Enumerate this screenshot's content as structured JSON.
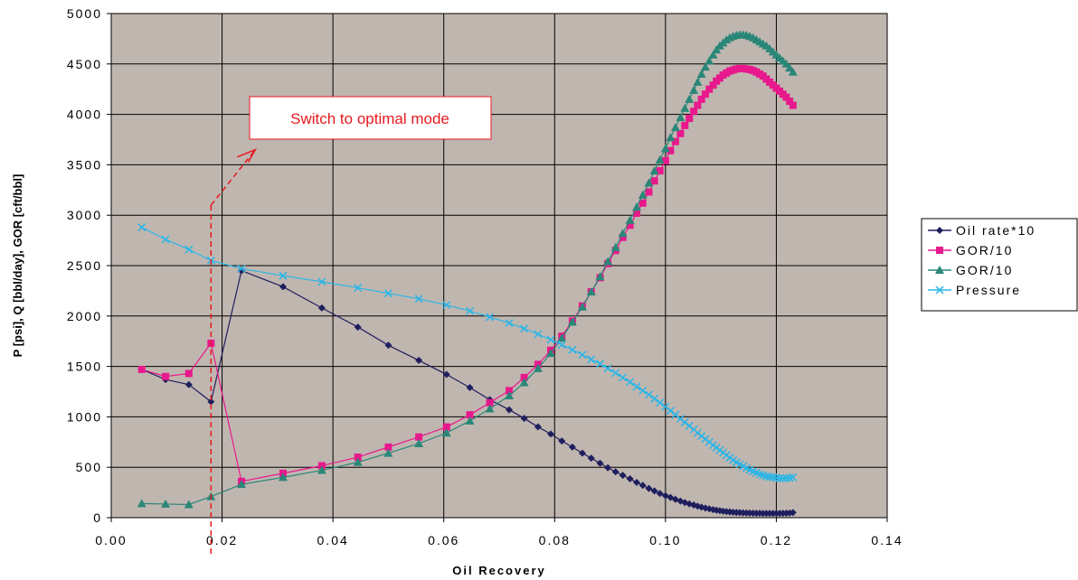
{
  "chart_data": {
    "type": "line",
    "xlabel": "Oil Recovery",
    "ylabel": "P [psi], Q [bbl/day], GOR [cft/bbl]",
    "xlim": [
      0,
      0.14
    ],
    "ylim": [
      0,
      5000
    ],
    "xticks": [
      "0.00",
      "0.02",
      "0.04",
      "0.06",
      "0.08",
      "0.10",
      "0.12",
      "0.14"
    ],
    "yticks": [
      "0",
      "500",
      "1000",
      "1500",
      "2000",
      "2500",
      "3000",
      "3500",
      "4000",
      "4500",
      "5000"
    ],
    "grid": true,
    "plot_background": "#c0b6b0",
    "legend_position": "right",
    "annotation": {
      "text": "Switch to optimal mode",
      "x": 0.018,
      "line_top_y": 3100,
      "arrow_to": [
        0.026,
        3650
      ],
      "color": "#e8191f"
    },
    "series": [
      {
        "name": "Oil rate*10",
        "color": "#1f1f5e",
        "marker": "diamond",
        "points": [
          [
            0.0055,
            1470
          ],
          [
            0.0098,
            1370
          ],
          [
            0.014,
            1320
          ],
          [
            0.018,
            1150
          ],
          [
            0.0235,
            2450
          ],
          [
            0.031,
            2290
          ],
          [
            0.038,
            2080
          ],
          [
            0.0445,
            1890
          ],
          [
            0.05,
            1710
          ],
          [
            0.0555,
            1560
          ],
          [
            0.0605,
            1420
          ],
          [
            0.0647,
            1290
          ],
          [
            0.0683,
            1170
          ],
          [
            0.0718,
            1070
          ],
          [
            0.0745,
            985
          ],
          [
            0.077,
            900
          ],
          [
            0.0793,
            830
          ],
          [
            0.0813,
            760
          ],
          [
            0.0832,
            700
          ],
          [
            0.085,
            640
          ],
          [
            0.0866,
            590
          ],
          [
            0.0882,
            540
          ],
          [
            0.0896,
            495
          ],
          [
            0.091,
            455
          ],
          [
            0.0923,
            420
          ],
          [
            0.0936,
            385
          ],
          [
            0.0948,
            350
          ],
          [
            0.0959,
            320
          ],
          [
            0.097,
            290
          ],
          [
            0.098,
            265
          ],
          [
            0.099,
            240
          ],
          [
            0.1,
            218
          ],
          [
            0.1009,
            200
          ],
          [
            0.1018,
            182
          ],
          [
            0.1027,
            165
          ],
          [
            0.1035,
            150
          ],
          [
            0.1043,
            137
          ],
          [
            0.1051,
            125
          ],
          [
            0.1058,
            114
          ],
          [
            0.1065,
            104
          ],
          [
            0.1072,
            95
          ],
          [
            0.1079,
            87
          ],
          [
            0.1086,
            80
          ],
          [
            0.1092,
            74
          ],
          [
            0.1098,
            69
          ],
          [
            0.1104,
            64
          ],
          [
            0.111,
            60
          ],
          [
            0.1116,
            57
          ],
          [
            0.1122,
            54
          ],
          [
            0.1128,
            52
          ],
          [
            0.1134,
            50
          ],
          [
            0.114,
            48
          ],
          [
            0.1146,
            47
          ],
          [
            0.1152,
            46
          ],
          [
            0.1158,
            45
          ],
          [
            0.1164,
            44
          ],
          [
            0.117,
            44
          ],
          [
            0.1176,
            43
          ],
          [
            0.1182,
            43
          ],
          [
            0.1188,
            43
          ],
          [
            0.1194,
            43
          ],
          [
            0.12,
            43
          ],
          [
            0.1206,
            43
          ],
          [
            0.1212,
            44
          ],
          [
            0.1218,
            45
          ],
          [
            0.1224,
            46
          ],
          [
            0.123,
            50
          ]
        ]
      },
      {
        "name": "GOR/10",
        "color": "#e8198c",
        "marker": "square",
        "points": [
          [
            0.0055,
            1470
          ],
          [
            0.0098,
            1400
          ],
          [
            0.014,
            1430
          ],
          [
            0.018,
            1730
          ],
          [
            0.0235,
            360
          ],
          [
            0.031,
            440
          ],
          [
            0.038,
            515
          ],
          [
            0.0445,
            600
          ],
          [
            0.05,
            700
          ],
          [
            0.0555,
            800
          ],
          [
            0.0605,
            900
          ],
          [
            0.0647,
            1020
          ],
          [
            0.0683,
            1140
          ],
          [
            0.0718,
            1260
          ],
          [
            0.0745,
            1390
          ],
          [
            0.077,
            1520
          ],
          [
            0.0793,
            1660
          ],
          [
            0.0813,
            1800
          ],
          [
            0.0832,
            1950
          ],
          [
            0.085,
            2100
          ],
          [
            0.0866,
            2240
          ],
          [
            0.0882,
            2380
          ],
          [
            0.0896,
            2520
          ],
          [
            0.091,
            2650
          ],
          [
            0.0923,
            2780
          ],
          [
            0.0936,
            2900
          ],
          [
            0.0948,
            3020
          ],
          [
            0.0959,
            3120
          ],
          [
            0.097,
            3230
          ],
          [
            0.098,
            3340
          ],
          [
            0.099,
            3440
          ],
          [
            0.1,
            3540
          ],
          [
            0.1009,
            3640
          ],
          [
            0.1018,
            3730
          ],
          [
            0.1027,
            3810
          ],
          [
            0.1035,
            3890
          ],
          [
            0.1043,
            3960
          ],
          [
            0.1051,
            4030
          ],
          [
            0.1058,
            4090
          ],
          [
            0.1065,
            4150
          ],
          [
            0.1072,
            4200
          ],
          [
            0.1079,
            4250
          ],
          [
            0.1086,
            4290
          ],
          [
            0.1092,
            4330
          ],
          [
            0.1098,
            4360
          ],
          [
            0.1104,
            4390
          ],
          [
            0.111,
            4410
          ],
          [
            0.1116,
            4430
          ],
          [
            0.1122,
            4440
          ],
          [
            0.1128,
            4450
          ],
          [
            0.1134,
            4455
          ],
          [
            0.114,
            4455
          ],
          [
            0.1146,
            4450
          ],
          [
            0.1152,
            4445
          ],
          [
            0.1158,
            4435
          ],
          [
            0.1164,
            4420
          ],
          [
            0.117,
            4400
          ],
          [
            0.1176,
            4380
          ],
          [
            0.1182,
            4350
          ],
          [
            0.1188,
            4320
          ],
          [
            0.1194,
            4290
          ],
          [
            0.12,
            4260
          ],
          [
            0.1206,
            4230
          ],
          [
            0.1212,
            4200
          ],
          [
            0.1218,
            4170
          ],
          [
            0.1224,
            4130
          ],
          [
            0.123,
            4090
          ]
        ]
      },
      {
        "name": "GOR/10",
        "color": "#2a8778",
        "marker": "triangle",
        "points": [
          [
            0.0055,
            140
          ],
          [
            0.0098,
            135
          ],
          [
            0.014,
            130
          ],
          [
            0.018,
            210
          ],
          [
            0.0235,
            330
          ],
          [
            0.031,
            400
          ],
          [
            0.038,
            470
          ],
          [
            0.0445,
            550
          ],
          [
            0.05,
            640
          ],
          [
            0.0555,
            735
          ],
          [
            0.0605,
            840
          ],
          [
            0.0647,
            960
          ],
          [
            0.0683,
            1080
          ],
          [
            0.0718,
            1210
          ],
          [
            0.0745,
            1340
          ],
          [
            0.077,
            1480
          ],
          [
            0.0793,
            1630
          ],
          [
            0.0813,
            1780
          ],
          [
            0.0832,
            1940
          ],
          [
            0.085,
            2090
          ],
          [
            0.0866,
            2240
          ],
          [
            0.0882,
            2390
          ],
          [
            0.0896,
            2540
          ],
          [
            0.091,
            2680
          ],
          [
            0.0923,
            2820
          ],
          [
            0.0936,
            2950
          ],
          [
            0.0948,
            3080
          ],
          [
            0.0959,
            3200
          ],
          [
            0.097,
            3320
          ],
          [
            0.098,
            3440
          ],
          [
            0.099,
            3550
          ],
          [
            0.1,
            3660
          ],
          [
            0.1009,
            3770
          ],
          [
            0.1018,
            3870
          ],
          [
            0.1027,
            3970
          ],
          [
            0.1035,
            4060
          ],
          [
            0.1043,
            4150
          ],
          [
            0.1051,
            4240
          ],
          [
            0.1058,
            4320
          ],
          [
            0.1065,
            4400
          ],
          [
            0.1072,
            4470
          ],
          [
            0.1079,
            4530
          ],
          [
            0.1086,
            4590
          ],
          [
            0.1092,
            4640
          ],
          [
            0.1098,
            4680
          ],
          [
            0.1104,
            4710
          ],
          [
            0.111,
            4740
          ],
          [
            0.1116,
            4760
          ],
          [
            0.1122,
            4775
          ],
          [
            0.1128,
            4785
          ],
          [
            0.1134,
            4790
          ],
          [
            0.114,
            4790
          ],
          [
            0.1146,
            4785
          ],
          [
            0.1152,
            4775
          ],
          [
            0.1158,
            4760
          ],
          [
            0.1164,
            4740
          ],
          [
            0.117,
            4720
          ],
          [
            0.1176,
            4700
          ],
          [
            0.1182,
            4680
          ],
          [
            0.1188,
            4650
          ],
          [
            0.1194,
            4620
          ],
          [
            0.12,
            4590
          ],
          [
            0.1206,
            4560
          ],
          [
            0.1212,
            4530
          ],
          [
            0.1218,
            4500
          ],
          [
            0.1224,
            4460
          ],
          [
            0.123,
            4420
          ]
        ]
      },
      {
        "name": "Pressure",
        "color": "#29b6e8",
        "marker": "x",
        "points": [
          [
            0.0055,
            2880
          ],
          [
            0.0098,
            2760
          ],
          [
            0.014,
            2660
          ],
          [
            0.018,
            2550
          ],
          [
            0.0235,
            2470
          ],
          [
            0.031,
            2400
          ],
          [
            0.038,
            2340
          ],
          [
            0.0445,
            2280
          ],
          [
            0.05,
            2225
          ],
          [
            0.0555,
            2170
          ],
          [
            0.0605,
            2110
          ],
          [
            0.0647,
            2050
          ],
          [
            0.0683,
            1990
          ],
          [
            0.0718,
            1930
          ],
          [
            0.0745,
            1875
          ],
          [
            0.077,
            1820
          ],
          [
            0.0793,
            1765
          ],
          [
            0.0813,
            1715
          ],
          [
            0.0832,
            1665
          ],
          [
            0.085,
            1615
          ],
          [
            0.0866,
            1570
          ],
          [
            0.0882,
            1525
          ],
          [
            0.0896,
            1480
          ],
          [
            0.091,
            1435
          ],
          [
            0.0923,
            1390
          ],
          [
            0.0936,
            1345
          ],
          [
            0.0948,
            1300
          ],
          [
            0.0959,
            1260
          ],
          [
            0.097,
            1220
          ],
          [
            0.098,
            1180
          ],
          [
            0.099,
            1140
          ],
          [
            0.1,
            1100
          ],
          [
            0.1009,
            1060
          ],
          [
            0.1018,
            1020
          ],
          [
            0.1027,
            980
          ],
          [
            0.1035,
            945
          ],
          [
            0.1043,
            910
          ],
          [
            0.1051,
            875
          ],
          [
            0.1058,
            840
          ],
          [
            0.1065,
            810
          ],
          [
            0.1072,
            780
          ],
          [
            0.1079,
            750
          ],
          [
            0.1086,
            720
          ],
          [
            0.1092,
            695
          ],
          [
            0.1098,
            670
          ],
          [
            0.1104,
            645
          ],
          [
            0.111,
            620
          ],
          [
            0.1116,
            595
          ],
          [
            0.1122,
            570
          ],
          [
            0.1128,
            550
          ],
          [
            0.1134,
            530
          ],
          [
            0.114,
            510
          ],
          [
            0.1146,
            490
          ],
          [
            0.1152,
            475
          ],
          [
            0.1158,
            460
          ],
          [
            0.1164,
            445
          ],
          [
            0.117,
            430
          ],
          [
            0.1176,
            420
          ],
          [
            0.1182,
            410
          ],
          [
            0.1188,
            405
          ],
          [
            0.1194,
            400
          ],
          [
            0.12,
            395
          ],
          [
            0.1206,
            392
          ],
          [
            0.1212,
            390
          ],
          [
            0.1218,
            392
          ],
          [
            0.1224,
            395
          ],
          [
            0.123,
            400
          ]
        ]
      }
    ]
  }
}
